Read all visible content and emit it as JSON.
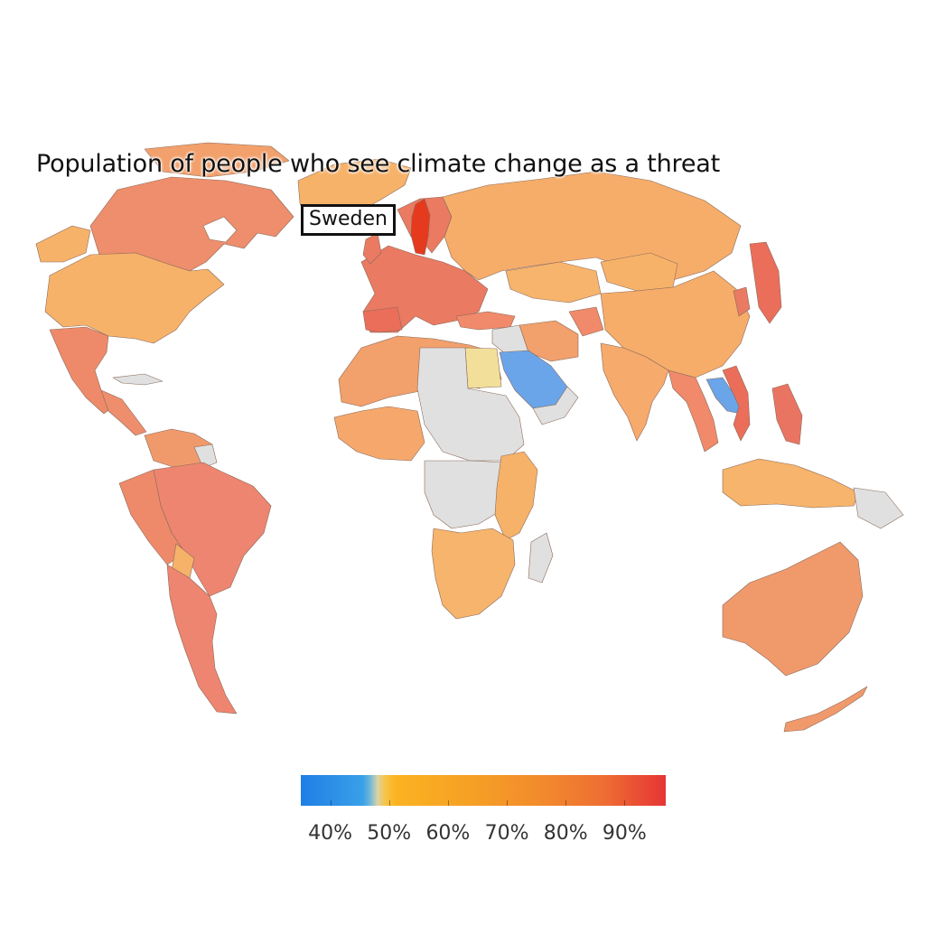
{
  "title": "Population of people who see climate change as a threat",
  "highlight_label": "Sweden",
  "legend": {
    "ticks": [
      "40%",
      "50%",
      "60%",
      "70%",
      "80%",
      "90%"
    ],
    "range": [
      35,
      97
    ],
    "tick_values": [
      40,
      50,
      60,
      70,
      80,
      90
    ]
  },
  "colors": {
    "no_data": "#e0e0e0",
    "low": "#6aa5ea",
    "mid_low": "#f2e09a",
    "mid": "#f7b26a",
    "high": "#ee8a6a",
    "very_high": "#e65a3a",
    "peak": "#e63a1f"
  },
  "regions": [
    {
      "name": "Sweden",
      "value": 92
    },
    {
      "name": "Saudi Arabia",
      "value": 40
    },
    {
      "name": "Laos",
      "value": 42
    },
    {
      "name": "Egypt",
      "value": 55
    },
    {
      "name": "Russia",
      "value": 68
    },
    {
      "name": "United States",
      "value": 67
    },
    {
      "name": "Canada",
      "value": 77
    },
    {
      "name": "Brazil",
      "value": 79
    },
    {
      "name": "Australia",
      "value": 76
    },
    {
      "name": "China",
      "value": 66
    },
    {
      "name": "India",
      "value": 68
    },
    {
      "name": "Japan",
      "value": 82
    }
  ]
}
